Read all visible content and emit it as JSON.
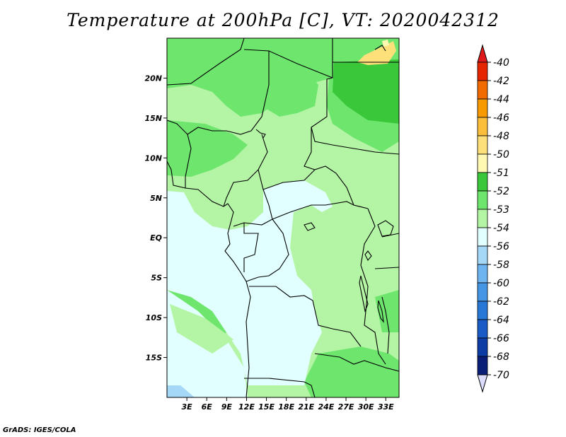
{
  "title": "Temperature at 200hPa [C], VT: 2020042312",
  "footer": "GrADS: IGES/COLA",
  "map": {
    "lat_range": [
      -20,
      25
    ],
    "lon_range": [
      0,
      35
    ],
    "lat_ticks": [
      {
        "value": 20,
        "label": "20N"
      },
      {
        "value": 15,
        "label": "15N"
      },
      {
        "value": 10,
        "label": "10N"
      },
      {
        "value": 5,
        "label": "5N"
      },
      {
        "value": 0,
        "label": "EQ"
      },
      {
        "value": -5,
        "label": "5S"
      },
      {
        "value": -10,
        "label": "10S"
      },
      {
        "value": -15,
        "label": "15S"
      }
    ],
    "lon_ticks": [
      {
        "value": 3,
        "label": "3E"
      },
      {
        "value": 6,
        "label": "6E"
      },
      {
        "value": 9,
        "label": "9E"
      },
      {
        "value": 12,
        "label": "12E"
      },
      {
        "value": 15,
        "label": "15E"
      },
      {
        "value": 18,
        "label": "18E"
      },
      {
        "value": 21,
        "label": "21E"
      },
      {
        "value": 24,
        "label": "24E"
      },
      {
        "value": 27,
        "label": "27E"
      },
      {
        "value": 30,
        "label": "30E"
      },
      {
        "value": 33,
        "label": "33E"
      }
    ]
  },
  "colorbar": {
    "levels": [
      {
        "label": "-40",
        "color": "#b50000"
      },
      {
        "label": "-42",
        "color": "#e62600"
      },
      {
        "label": "-44",
        "color": "#f26b00"
      },
      {
        "label": "-46",
        "color": "#f79a00"
      },
      {
        "label": "-48",
        "color": "#fbbf3c"
      },
      {
        "label": "-50",
        "color": "#fde07a"
      },
      {
        "label": "-51",
        "color": "#fff8b3"
      },
      {
        "label": "-52",
        "color": "#3ac83a"
      },
      {
        "label": "-53",
        "color": "#6ee66e"
      },
      {
        "label": "-54",
        "color": "#b4f5a5"
      },
      {
        "label": "-56",
        "color": "#e1ffff"
      },
      {
        "label": "-58",
        "color": "#a5d7f7"
      },
      {
        "label": "-60",
        "color": "#6eb4f0"
      },
      {
        "label": "-62",
        "color": "#4696e6"
      },
      {
        "label": "-64",
        "color": "#2878d7"
      },
      {
        "label": "-66",
        "color": "#1a5ac6"
      },
      {
        "label": "-68",
        "color": "#0e3ca5"
      },
      {
        "label": "-70",
        "color": "#0a1e78"
      }
    ],
    "bottom_triangle_color": "#dcdcff",
    "top_triangle_color": "#e01a1a"
  }
}
